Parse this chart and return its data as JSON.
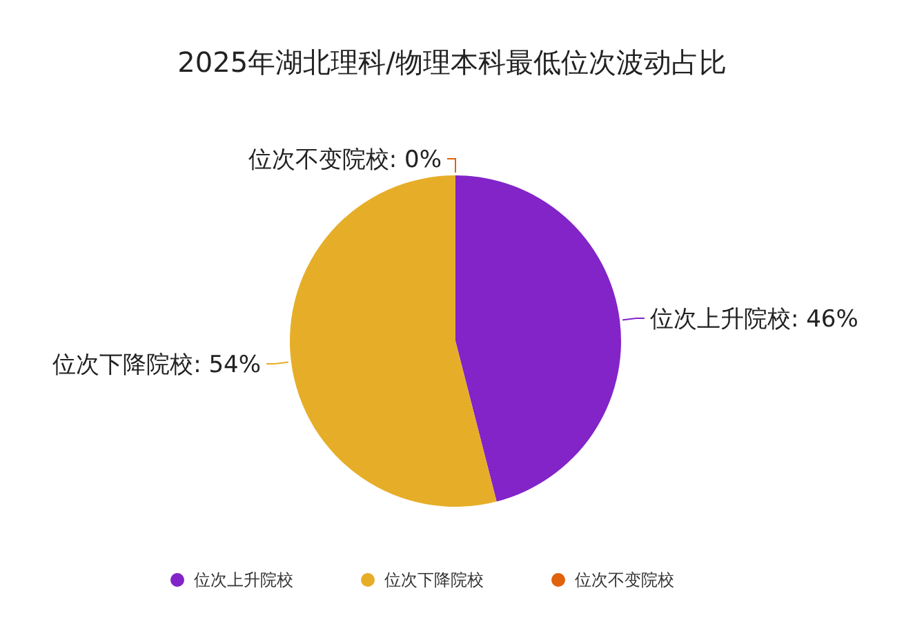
{
  "chart_data": {
    "type": "pie",
    "title": "2025年湖北理科/物理本科最低位次波动占比",
    "categories": [
      "位次上升院校",
      "位次下降院校",
      "位次不变院校"
    ],
    "values": [
      46,
      54,
      0
    ],
    "colors": [
      "#8224c8",
      "#e6ae28",
      "#e0620d"
    ],
    "value_labels": [
      "位次上升院校: 46%",
      "位次下降院校: 54%",
      "位次不变院校: 0%"
    ],
    "legend": "bottom"
  }
}
